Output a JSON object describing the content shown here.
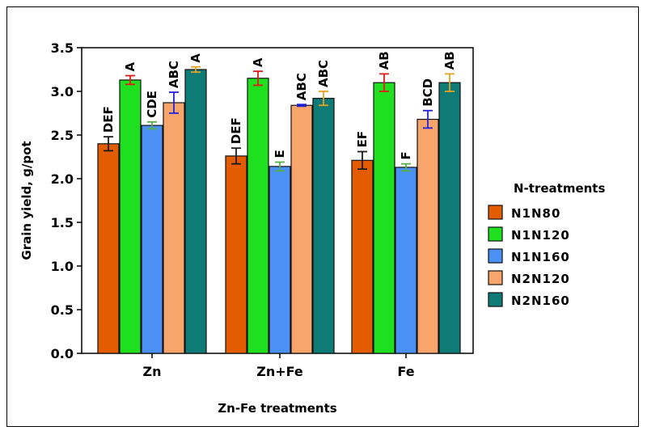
{
  "chart_data": {
    "type": "bar",
    "xlabel": "Zn-Fe treatments",
    "ylabel": "Grain yield, g/pot",
    "ylim": [
      0,
      3.5
    ],
    "yticks": [
      "0.0",
      "0.5",
      "1.0",
      "1.5",
      "2.0",
      "2.5",
      "3.0",
      "3.5"
    ],
    "categories": [
      "Zn",
      "Zn+Fe",
      "Fe"
    ],
    "legend": {
      "title": "N-treatments",
      "placement": "right"
    },
    "series": [
      {
        "name": "N1N80",
        "color": "#e35d00",
        "values": [
          2.4,
          2.26,
          2.21
        ],
        "errors": [
          0.08,
          0.09,
          0.1
        ],
        "error_color": "#1a1a1a",
        "letters": [
          "DEF",
          "DEF",
          "EF"
        ]
      },
      {
        "name": "N1N120",
        "color": "#1ee01e",
        "values": [
          3.13,
          3.15,
          3.1
        ],
        "errors": [
          0.05,
          0.08,
          0.1
        ],
        "error_color": "#e31a1a",
        "letters": [
          "A",
          "A",
          "AB"
        ]
      },
      {
        "name": "N1N160",
        "color": "#4a90f5",
        "values": [
          2.61,
          2.14,
          2.13
        ],
        "errors": [
          0.04,
          0.05,
          0.04
        ],
        "error_color": "#55b04a",
        "letters": [
          "CDE",
          "E",
          "F"
        ]
      },
      {
        "name": "N2N120",
        "color": "#f7a56b",
        "values": [
          2.87,
          2.84,
          2.68
        ],
        "errors": [
          0.12,
          0.01,
          0.1
        ],
        "error_color": "#2222dd",
        "letters": [
          "ABC",
          "ABC",
          "BCD"
        ]
      },
      {
        "name": "N2N160",
        "color": "#0f7b76",
        "values": [
          3.25,
          2.92,
          3.1
        ],
        "errors": [
          0.03,
          0.08,
          0.1
        ],
        "error_color": "#e8a020",
        "letters": [
          "A",
          "ABC",
          "AB"
        ]
      }
    ]
  }
}
